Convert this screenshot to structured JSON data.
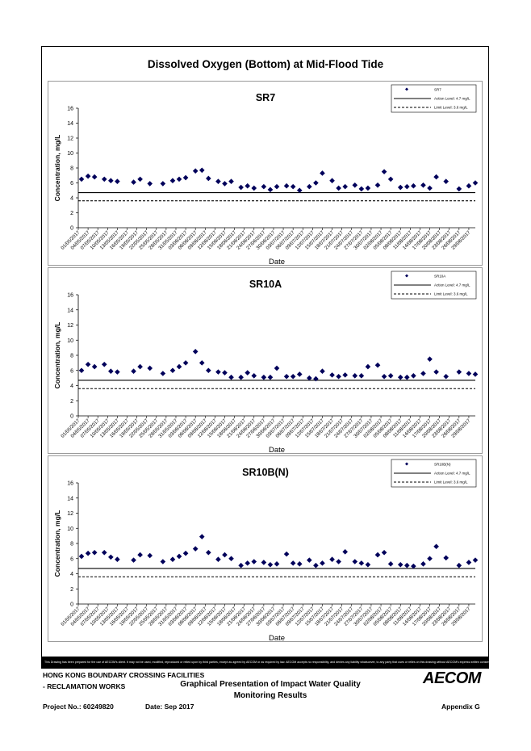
{
  "page": {
    "main_title": "Dissolved Oxygen (Bottom) at Mid-Flood Tide",
    "disclaimer": "This Drawing has been prepared for the use of AECOM's client. It may not be used, modified, reproduced or relied upon by third parties, except as agreed by AECOM or as required by law. AECOM accepts no responsibility, and denies any liability whatsoever, to any party that uses or relies on this drawing without AECOM's express written consent.",
    "footer": {
      "project_line1": "HONG KONG BOUNDARY CROSSING FACILITIES",
      "project_line2": "- RECLAMATION WORKS",
      "center_line1": "Graphical Presentation of Impact Water Quality",
      "center_line2": "Monitoring Results",
      "project_no": "Project No.: 60249820",
      "date": "Date: Sep 2017",
      "appendix": "Appendix G",
      "logo": "AECOM"
    }
  },
  "chart_data": [
    {
      "type": "scatter",
      "title": "SR7",
      "xlabel": "Date",
      "ylabel": "Concentration, mg/L",
      "ylim": [
        0,
        16
      ],
      "yticks": [
        0,
        2,
        4,
        6,
        8,
        10,
        12,
        14,
        16
      ],
      "xlim": [
        "2017-05-01",
        "2017-08-31"
      ],
      "x_tick_labels": [
        "01/05/2017",
        "04/05/2017",
        "07/05/2017",
        "10/05/2017",
        "13/05/2017",
        "16/05/2017",
        "19/05/2017",
        "22/05/2017",
        "25/05/2017",
        "28/05/2017",
        "31/05/2017",
        "03/06/2017",
        "06/06/2017",
        "09/06/2017",
        "12/06/2017",
        "15/06/2017",
        "18/06/2017",
        "21/06/2017",
        "24/06/2017",
        "27/06/2017",
        "30/06/2017",
        "03/07/2017",
        "06/07/2017",
        "09/07/2017",
        "12/07/2017",
        "15/07/2017",
        "18/07/2017",
        "21/07/2017",
        "24/07/2017",
        "27/07/2017",
        "30/07/2017",
        "02/08/2017",
        "05/08/2017",
        "08/08/2017",
        "11/08/2017",
        "14/08/2017",
        "17/08/2017",
        "20/08/2017",
        "23/08/2017",
        "26/08/2017",
        "29/08/2017"
      ],
      "grid": false,
      "legend_position": "top-right",
      "legend": [
        "SR7",
        "Action Level: 4.7 mg/L",
        "Limit Level: 3.6 mg/L"
      ],
      "lines": [
        {
          "name": "Action Level: 4.7 mg/L",
          "y": 4.7,
          "style": "solid"
        },
        {
          "name": "Limit Level: 3.6 mg/L",
          "y": 3.6,
          "style": "dashed"
        }
      ],
      "series": [
        {
          "name": "SR7",
          "x": [
            "2017-05-02",
            "2017-05-04",
            "2017-05-06",
            "2017-05-09",
            "2017-05-11",
            "2017-05-13",
            "2017-05-18",
            "2017-05-20",
            "2017-05-23",
            "2017-05-27",
            "2017-05-30",
            "2017-06-01",
            "2017-06-03",
            "2017-06-06",
            "2017-06-08",
            "2017-06-10",
            "2017-06-13",
            "2017-06-15",
            "2017-06-17",
            "2017-06-20",
            "2017-06-22",
            "2017-06-24",
            "2017-06-27",
            "2017-06-29",
            "2017-07-01",
            "2017-07-04",
            "2017-07-06",
            "2017-07-08",
            "2017-07-11",
            "2017-07-13",
            "2017-07-15",
            "2017-07-18",
            "2017-07-20",
            "2017-07-22",
            "2017-07-25",
            "2017-07-27",
            "2017-07-29",
            "2017-08-01",
            "2017-08-03",
            "2017-08-05",
            "2017-08-08",
            "2017-08-10",
            "2017-08-12",
            "2017-08-15",
            "2017-08-17",
            "2017-08-19",
            "2017-08-22",
            "2017-08-26",
            "2017-08-29",
            "2017-08-31"
          ],
          "y": [
            6.5,
            6.9,
            6.8,
            6.5,
            6.3,
            6.2,
            6.1,
            6.5,
            5.9,
            5.9,
            6.3,
            6.5,
            6.7,
            7.6,
            7.7,
            6.6,
            6.2,
            5.9,
            6.2,
            5.4,
            5.6,
            5.3,
            5.5,
            5.1,
            5.5,
            5.6,
            5.5,
            5.0,
            5.5,
            6.0,
            7.3,
            6.3,
            5.3,
            5.5,
            5.7,
            5.2,
            5.3,
            5.7,
            7.5,
            6.5,
            5.4,
            5.5,
            5.6,
            5.7,
            5.3,
            6.8,
            6.2,
            5.2,
            5.6,
            6.0
          ]
        }
      ]
    },
    {
      "type": "scatter",
      "title": "SR10A",
      "xlabel": "Date",
      "ylabel": "Concentration, mg/L",
      "ylim": [
        0,
        16
      ],
      "yticks": [
        0,
        2,
        4,
        6,
        8,
        10,
        12,
        14,
        16
      ],
      "xlim": [
        "2017-05-01",
        "2017-08-31"
      ],
      "x_tick_labels": [
        "01/05/2017",
        "04/05/2017",
        "07/05/2017",
        "10/05/2017",
        "13/05/2017",
        "16/05/2017",
        "19/05/2017",
        "22/05/2017",
        "25/05/2017",
        "28/05/2017",
        "31/05/2017",
        "03/06/2017",
        "06/06/2017",
        "09/06/2017",
        "12/06/2017",
        "15/06/2017",
        "18/06/2017",
        "21/06/2017",
        "24/06/2017",
        "27/06/2017",
        "30/06/2017",
        "03/07/2017",
        "06/07/2017",
        "09/07/2017",
        "12/07/2017",
        "15/07/2017",
        "18/07/2017",
        "21/07/2017",
        "24/07/2017",
        "27/07/2017",
        "30/07/2017",
        "02/08/2017",
        "05/08/2017",
        "08/08/2017",
        "11/08/2017",
        "14/08/2017",
        "17/08/2017",
        "20/08/2017",
        "23/08/2017",
        "26/08/2017",
        "29/08/2017"
      ],
      "grid": false,
      "legend_position": "top-right",
      "legend": [
        "SR10A",
        "Action Level: 4.7 mg/L",
        "Limit Level: 3.6 mg/L"
      ],
      "lines": [
        {
          "name": "Action Level: 4.7 mg/L",
          "y": 4.7,
          "style": "solid"
        },
        {
          "name": "Limit Level: 3.6 mg/L",
          "y": 3.6,
          "style": "dashed"
        }
      ],
      "series": [
        {
          "name": "SR10A",
          "x": [
            "2017-05-02",
            "2017-05-04",
            "2017-05-06",
            "2017-05-09",
            "2017-05-11",
            "2017-05-13",
            "2017-05-18",
            "2017-05-20",
            "2017-05-23",
            "2017-05-27",
            "2017-05-30",
            "2017-06-01",
            "2017-06-03",
            "2017-06-06",
            "2017-06-08",
            "2017-06-10",
            "2017-06-13",
            "2017-06-15",
            "2017-06-17",
            "2017-06-20",
            "2017-06-22",
            "2017-06-24",
            "2017-06-27",
            "2017-06-29",
            "2017-07-01",
            "2017-07-04",
            "2017-07-06",
            "2017-07-08",
            "2017-07-11",
            "2017-07-13",
            "2017-07-15",
            "2017-07-18",
            "2017-07-20",
            "2017-07-22",
            "2017-07-25",
            "2017-07-27",
            "2017-07-29",
            "2017-08-01",
            "2017-08-03",
            "2017-08-05",
            "2017-08-08",
            "2017-08-10",
            "2017-08-12",
            "2017-08-15",
            "2017-08-17",
            "2017-08-19",
            "2017-08-22",
            "2017-08-26",
            "2017-08-29",
            "2017-08-31"
          ],
          "y": [
            6.0,
            6.8,
            6.5,
            6.8,
            5.9,
            5.8,
            5.9,
            6.5,
            6.3,
            5.6,
            6.0,
            6.5,
            7.0,
            8.5,
            7.0,
            6.0,
            5.8,
            5.7,
            5.1,
            5.1,
            5.7,
            5.3,
            5.1,
            5.1,
            6.3,
            5.2,
            5.2,
            5.5,
            5.0,
            4.9,
            5.9,
            5.4,
            5.2,
            5.4,
            5.3,
            5.3,
            6.5,
            6.7,
            5.2,
            5.3,
            5.1,
            5.1,
            5.3,
            5.6,
            7.5,
            5.8,
            5.2,
            5.8,
            5.6,
            5.5
          ]
        }
      ]
    },
    {
      "type": "scatter",
      "title": "SR10B(N)",
      "xlabel": "Date",
      "ylabel": "Concentration, mg/L",
      "ylim": [
        0,
        16
      ],
      "yticks": [
        0,
        2,
        4,
        6,
        8,
        10,
        12,
        14,
        16
      ],
      "xlim": [
        "2017-05-01",
        "2017-08-31"
      ],
      "x_tick_labels": [
        "01/05/2017",
        "04/05/2017",
        "07/05/2017",
        "10/05/2017",
        "13/05/2017",
        "16/05/2017",
        "19/05/2017",
        "22/05/2017",
        "25/05/2017",
        "28/05/2017",
        "31/05/2017",
        "03/06/2017",
        "06/06/2017",
        "09/06/2017",
        "12/06/2017",
        "15/06/2017",
        "18/06/2017",
        "21/06/2017",
        "24/06/2017",
        "27/06/2017",
        "30/06/2017",
        "03/07/2017",
        "06/07/2017",
        "09/07/2017",
        "12/07/2017",
        "15/07/2017",
        "18/07/2017",
        "21/07/2017",
        "24/07/2017",
        "27/07/2017",
        "30/07/2017",
        "02/08/2017",
        "05/08/2017",
        "08/08/2017",
        "11/08/2017",
        "14/08/2017",
        "17/08/2017",
        "20/08/2017",
        "23/08/2017",
        "26/08/2017",
        "29/08/2017"
      ],
      "grid": false,
      "legend_position": "top-right",
      "legend": [
        "SR10B(N)",
        "Action Level: 4.7 mg/L",
        "Limit Level: 3.6 mg/L"
      ],
      "lines": [
        {
          "name": "Action Level: 4.7 mg/L",
          "y": 4.7,
          "style": "solid"
        },
        {
          "name": "Limit Level: 3.6 mg/L",
          "y": 3.6,
          "style": "dashed"
        }
      ],
      "series": [
        {
          "name": "SR10B(N)",
          "x": [
            "2017-05-02",
            "2017-05-04",
            "2017-05-06",
            "2017-05-09",
            "2017-05-11",
            "2017-05-13",
            "2017-05-18",
            "2017-05-20",
            "2017-05-23",
            "2017-05-27",
            "2017-05-30",
            "2017-06-01",
            "2017-06-03",
            "2017-06-06",
            "2017-06-08",
            "2017-06-10",
            "2017-06-13",
            "2017-06-15",
            "2017-06-17",
            "2017-06-20",
            "2017-06-22",
            "2017-06-24",
            "2017-06-27",
            "2017-06-29",
            "2017-07-01",
            "2017-07-04",
            "2017-07-06",
            "2017-07-08",
            "2017-07-11",
            "2017-07-13",
            "2017-07-15",
            "2017-07-18",
            "2017-07-20",
            "2017-07-22",
            "2017-07-25",
            "2017-07-27",
            "2017-07-29",
            "2017-08-01",
            "2017-08-03",
            "2017-08-05",
            "2017-08-08",
            "2017-08-10",
            "2017-08-12",
            "2017-08-15",
            "2017-08-17",
            "2017-08-19",
            "2017-08-22",
            "2017-08-26",
            "2017-08-29",
            "2017-08-31"
          ],
          "y": [
            6.3,
            6.7,
            6.8,
            6.8,
            6.2,
            5.9,
            5.8,
            6.5,
            6.4,
            5.6,
            5.9,
            6.3,
            6.7,
            7.3,
            8.9,
            6.8,
            5.9,
            6.5,
            6.0,
            5.1,
            5.4,
            5.6,
            5.5,
            5.2,
            5.3,
            6.6,
            5.4,
            5.3,
            5.8,
            5.1,
            5.4,
            5.9,
            5.6,
            6.9,
            5.6,
            5.4,
            5.2,
            6.5,
            6.8,
            5.3,
            5.2,
            5.1,
            5.0,
            5.3,
            6.0,
            7.6,
            6.1,
            5.1,
            5.5,
            5.8
          ]
        }
      ]
    }
  ]
}
